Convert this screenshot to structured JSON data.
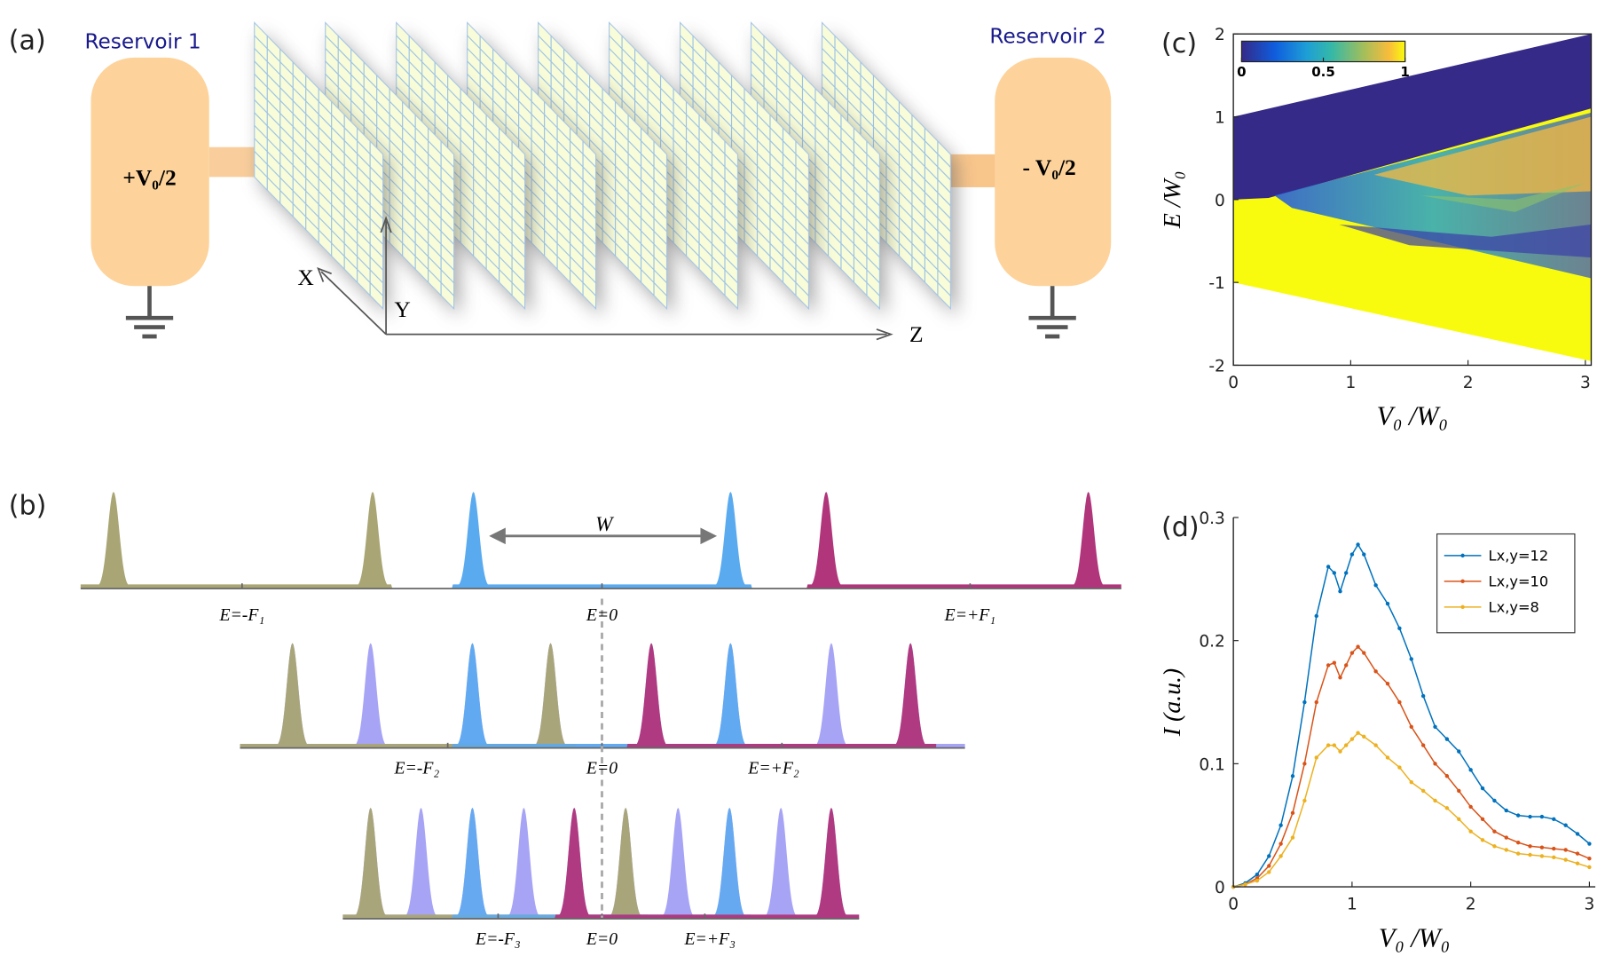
{
  "panel_a": {
    "label": "(a)",
    "reservoir_1": "Reservoir 1",
    "reservoir_2": "Reservoir 2",
    "voltage_1": "+V₀/2",
    "voltage_2": "- V₀/2",
    "axes": [
      "X",
      "Y",
      "Z"
    ]
  },
  "panel_b": {
    "label": "(b)",
    "width_label": "W",
    "rows": [
      [
        "E=-F₁",
        "E=0",
        "E=+F₁"
      ],
      [
        "E=-F₂",
        "E=0",
        "E=+F₂"
      ],
      [
        "E=-F₃",
        "E=0",
        "E=+F₃"
      ]
    ]
  },
  "chart_data": [
    {
      "type": "heatmap",
      "panel_label": "(c)",
      "xlabel": "V₀ /W₀",
      "ylabel": "E /W₀",
      "xlim": [
        0,
        3.05
      ],
      "ylim": [
        -2,
        2
      ],
      "xticks": [
        0,
        1,
        2,
        3
      ],
      "yticks": [
        -2,
        -1,
        0,
        1,
        2
      ],
      "colorbar_lim": [
        0,
        1
      ],
      "colorbar_ticks": [
        0,
        0.5,
        1
      ]
    },
    {
      "type": "line",
      "panel_label": "(d)",
      "xlabel": "V₀ /W₀",
      "ylabel": "I (a.u.)",
      "xlim": [
        0,
        3.05
      ],
      "ylim": [
        0,
        0.3
      ],
      "xticks": [
        0,
        1,
        2,
        3
      ],
      "yticks": [
        0,
        0.1,
        0.2,
        0.3
      ],
      "x": [
        0,
        0.1,
        0.2,
        0.3,
        0.4,
        0.5,
        0.6,
        0.7,
        0.8,
        0.85,
        0.9,
        0.95,
        1.0,
        1.05,
        1.1,
        1.2,
        1.3,
        1.4,
        1.5,
        1.6,
        1.7,
        1.8,
        1.9,
        2.0,
        2.1,
        2.2,
        2.3,
        2.4,
        2.5,
        2.6,
        2.7,
        2.8,
        2.9,
        3.0
      ],
      "series": [
        {
          "name": "Lx,y=12",
          "color": "#0072bd",
          "values": [
            0,
            0.003,
            0.01,
            0.025,
            0.05,
            0.09,
            0.15,
            0.22,
            0.26,
            0.255,
            0.24,
            0.255,
            0.27,
            0.278,
            0.27,
            0.245,
            0.23,
            0.21,
            0.185,
            0.155,
            0.13,
            0.12,
            0.11,
            0.095,
            0.08,
            0.07,
            0.062,
            0.058,
            0.057,
            0.057,
            0.055,
            0.05,
            0.043,
            0.035
          ]
        },
        {
          "name": "Lx,y=10",
          "color": "#d95319",
          "values": [
            0,
            0.002,
            0.007,
            0.017,
            0.035,
            0.06,
            0.1,
            0.15,
            0.18,
            0.182,
            0.17,
            0.18,
            0.19,
            0.195,
            0.19,
            0.175,
            0.165,
            0.15,
            0.13,
            0.115,
            0.1,
            0.09,
            0.078,
            0.065,
            0.055,
            0.045,
            0.04,
            0.036,
            0.033,
            0.032,
            0.031,
            0.03,
            0.027,
            0.023
          ]
        },
        {
          "name": "Lx,y=8",
          "color": "#edb120",
          "values": [
            0,
            0.002,
            0.005,
            0.012,
            0.025,
            0.04,
            0.07,
            0.105,
            0.115,
            0.115,
            0.11,
            0.115,
            0.12,
            0.125,
            0.122,
            0.115,
            0.105,
            0.097,
            0.085,
            0.078,
            0.07,
            0.064,
            0.055,
            0.045,
            0.038,
            0.033,
            0.03,
            0.027,
            0.026,
            0.025,
            0.024,
            0.022,
            0.019,
            0.016
          ]
        }
      ]
    }
  ]
}
